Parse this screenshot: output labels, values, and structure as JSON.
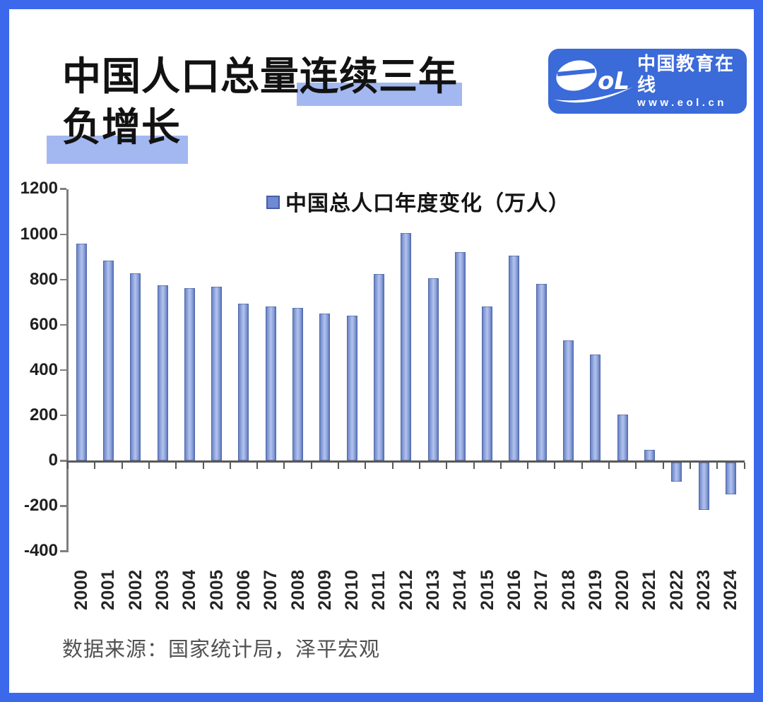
{
  "title": {
    "line1_normal": "中国人口总量",
    "line1_highlight": "连续三年",
    "line2_highlight": "负增长"
  },
  "logo": {
    "brand": "eol",
    "name_cn": "中国教育在线",
    "url": "www.eol.cn"
  },
  "source_note": "数据来源：国家统计局，泽平宏观",
  "colors": {
    "frame_blue": "#3c69ec",
    "logo_blue": "#3b6ad9",
    "title_highlight": "#a3b8f0",
    "bar_edge": "#5d76ba",
    "bar_center": "#b3c3ec",
    "axis_gray": "#595959"
  },
  "chart_data": {
    "type": "bar",
    "legend_label": "中国总人口年度变化（万人）",
    "series_name": "中国总人口年度变化（万人）",
    "categories": [
      "2000",
      "2001",
      "2002",
      "2003",
      "2004",
      "2005",
      "2006",
      "2007",
      "2008",
      "2009",
      "2010",
      "2011",
      "2012",
      "2013",
      "2014",
      "2015",
      "2016",
      "2017",
      "2018",
      "2019",
      "2020",
      "2021",
      "2022",
      "2023",
      "2024"
    ],
    "values": [
      957,
      884,
      826,
      774,
      761,
      768,
      692,
      681,
      673,
      648,
      641,
      825,
      1006,
      804,
      920,
      680,
      906,
      779,
      530,
      467,
      204,
      48,
      -85,
      -208,
      -139
    ],
    "unit": "万人",
    "ylim": [
      -400,
      1200
    ],
    "yticks": [
      1200,
      1000,
      800,
      600,
      400,
      200,
      0,
      -200,
      -400
    ],
    "grid": false,
    "legend_position": "top-center"
  }
}
